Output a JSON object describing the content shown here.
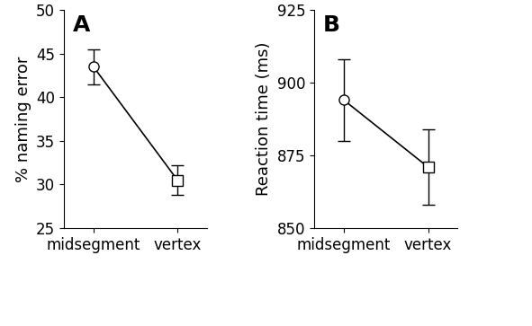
{
  "chart_data": [
    {
      "type": "line",
      "title": "A",
      "y_label": "% naming error",
      "categories": [
        "midsegment",
        "vertex"
      ],
      "series": [
        {
          "color": "#000000",
          "marker": [
            "circle",
            "square"
          ],
          "values": [
            43.5,
            30.5
          ],
          "errors": [
            2.0,
            1.7
          ]
        }
      ],
      "ylim": [
        25,
        50
      ],
      "yticks": [
        25,
        30,
        35,
        40,
        45,
        50
      ]
    },
    {
      "type": "line",
      "title": "B",
      "y_label": "Reaction time (ms)",
      "categories": [
        "midsegment",
        "vertex"
      ],
      "series": [
        {
          "color": "#000000",
          "marker": [
            "circle",
            "square"
          ],
          "values": [
            894,
            871
          ],
          "errors": [
            14,
            13
          ]
        }
      ],
      "ylim": [
        850,
        925
      ],
      "yticks": [
        850,
        875,
        900,
        925
      ]
    }
  ]
}
